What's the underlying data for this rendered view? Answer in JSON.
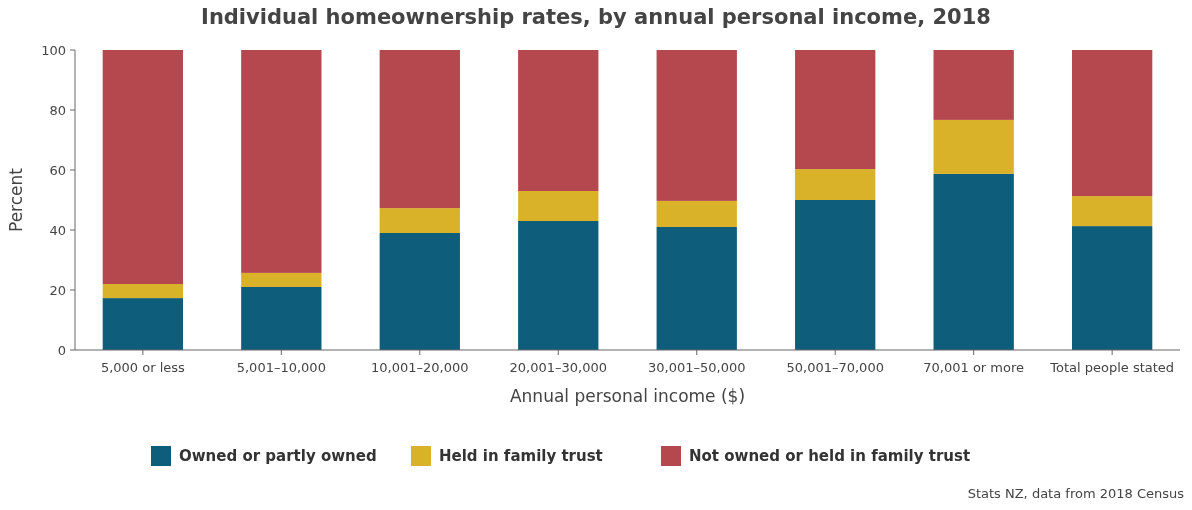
{
  "chart_data": {
    "type": "bar",
    "stacked": true,
    "title": "Individual homeownership rates, by annual personal income, 2018",
    "xlabel": "Annual personal income ($)",
    "ylabel": "Percent",
    "categories": [
      "5,000 or less",
      "5,001–10,000",
      "10,001–20,000",
      "20,001–30,000",
      "30,001–50,000",
      "50,001–70,000",
      "70,001 or more",
      "Total people stated"
    ],
    "series": [
      {
        "name": "Owned or partly owned",
        "color": "#0e5e7b",
        "values": [
          17.3,
          21,
          39,
          43,
          41,
          50,
          58.7,
          41.3
        ]
      },
      {
        "name": "Held in family trust",
        "color": "#d9b22a",
        "values": [
          4.7,
          4.7,
          8.3,
          10,
          8.7,
          10.3,
          18,
          10
        ]
      },
      {
        "name": "Not owned or held in family trust",
        "color": "#b5474f",
        "values": [
          78,
          74.3,
          52.7,
          47,
          50.3,
          39.7,
          23.3,
          48.7
        ]
      }
    ],
    "ylim": [
      0,
      100
    ],
    "yticks": [
      0,
      20,
      40,
      60,
      80,
      100
    ],
    "grid": false,
    "legend": "bottom",
    "annotations": [
      "Stats NZ, data from 2018 Census"
    ]
  }
}
